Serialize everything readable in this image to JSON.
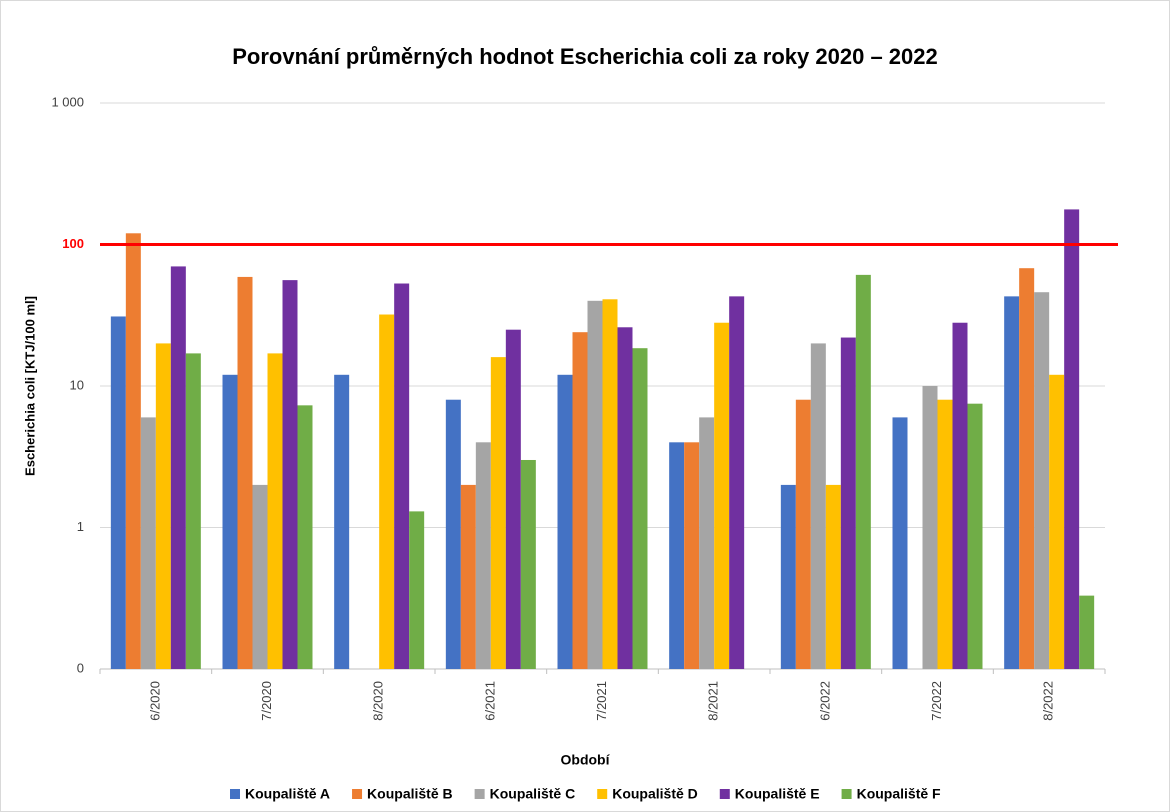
{
  "chart_data": {
    "type": "bar",
    "title": "Porovnání průměrných hodnot Escherichia coli za roky 2020 – 2022",
    "x_label": "Období",
    "y_label": "Escherichia coli  [KTJ/100 ml]",
    "categories": [
      "6/2020",
      "7/2020",
      "8/2020",
      "6/2021",
      "7/2021",
      "8/2021",
      "6/2022",
      "7/2022",
      "8/2022"
    ],
    "series": [
      {
        "name": "Koupaliště A",
        "color": "#4472c4",
        "values": [
          31,
          12,
          12,
          8,
          12,
          4,
          2,
          6,
          43
        ]
      },
      {
        "name": "Koupaliště B",
        "color": "#ed7d31",
        "values": [
          120,
          59,
          null,
          2,
          24,
          4,
          8,
          null,
          68
        ]
      },
      {
        "name": "Koupaliště C",
        "color": "#a5a5a5",
        "values": [
          6,
          2,
          null,
          4,
          40,
          6,
          20,
          10,
          46
        ]
      },
      {
        "name": "Koupaliště D",
        "color": "#ffc000",
        "values": [
          20,
          17,
          32,
          16,
          41,
          28,
          2,
          8,
          12
        ]
      },
      {
        "name": "Koupaliště E",
        "color": "#7030a0",
        "values": [
          70,
          56,
          53,
          25,
          26,
          43,
          22,
          28,
          177
        ]
      },
      {
        "name": "Koupaliště F",
        "color": "#70ad47",
        "values": [
          17,
          7.3,
          1.3,
          3,
          18.5,
          null,
          61,
          7.5,
          0.33
        ]
      }
    ],
    "log_scale": true,
    "ylim": [
      0.1,
      1000
    ],
    "yticks": [
      {
        "value": 0.1,
        "label": "0"
      },
      1,
      10,
      100,
      {
        "value": 1000,
        "label": "1 000"
      }
    ],
    "grid": true,
    "legend": "bottom",
    "reference_line": {
      "value": 100,
      "color": "#ff0000"
    }
  }
}
